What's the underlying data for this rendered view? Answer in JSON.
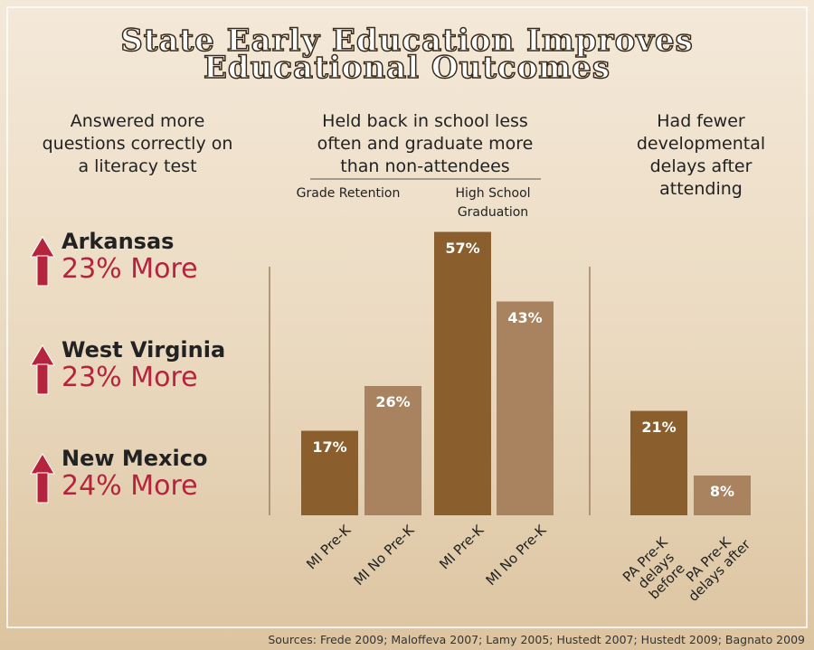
{
  "title": "State Early Education Improves Educational Outcomes",
  "sources": "Sources: Frede 2009; Maloffeva 2007; Lamy 2005; Hustedt 2007; Hustedt 2009; Bagnato 2009",
  "literacy": {
    "heading": "Answered more questions correctly on a literacy test",
    "items": [
      {
        "state": "Arkansas",
        "result": "23% More"
      },
      {
        "state": "West Virginia",
        "result": "23% More"
      },
      {
        "state": "New Mexico",
        "result": "24% More"
      }
    ]
  },
  "chart_data": [
    {
      "type": "bar",
      "title": "Held back in school less often and graduate more than non-attendees",
      "groups": [
        "Grade Retention",
        "High School Graduation"
      ],
      "categories": [
        "MI Pre-K",
        "MI No Pre-K",
        "MI Pre-K",
        "MI No Pre-K"
      ],
      "values": [
        17,
        26,
        57,
        43
      ],
      "value_labels": [
        "17%",
        "26%",
        "57%",
        "43%"
      ],
      "colors": [
        "#8b5f2d",
        "#a9835f",
        "#8b5f2d",
        "#a9835f"
      ]
    },
    {
      "type": "bar",
      "title": "Had fewer developmental delays after attending",
      "categories": [
        "PA Pre-K delays before",
        "PA Pre-K delays after"
      ],
      "values": [
        21,
        8
      ],
      "value_labels": [
        "21%",
        "8%"
      ],
      "colors": [
        "#8b5f2d",
        "#a9835f"
      ]
    }
  ]
}
